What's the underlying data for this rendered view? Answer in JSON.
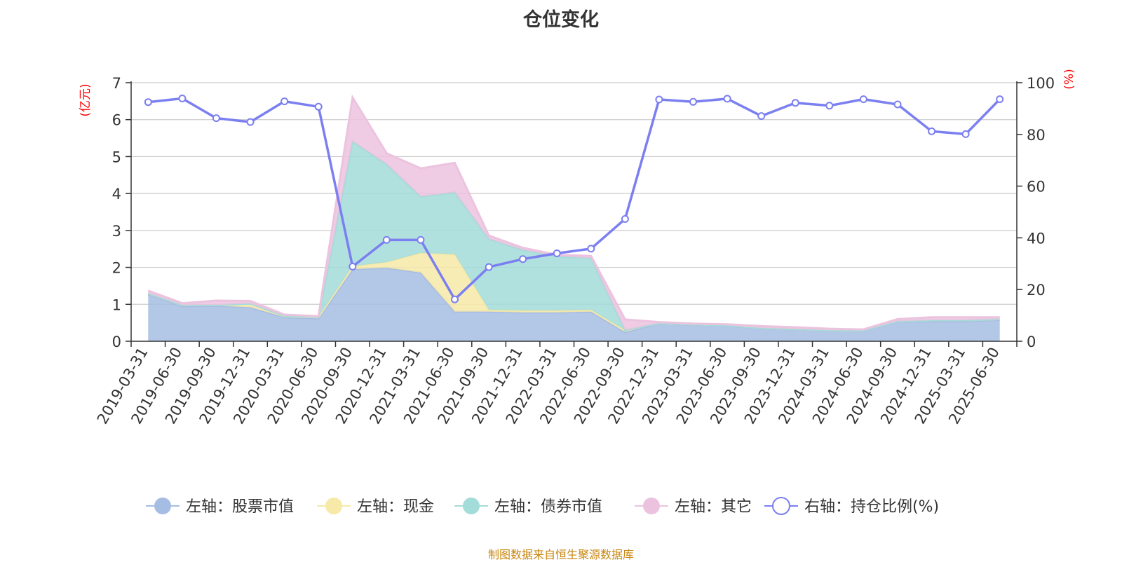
{
  "title": "仓位变化",
  "footer": "制图数据来自恒生聚源数据库",
  "colors": {
    "stock": "#a6bde3",
    "cash": "#f7e9a8",
    "bond": "#a3dcd9",
    "other": "#ecc3df",
    "ratio": "#7b7ff0",
    "axis_unit": "#ff0000",
    "footer": "#c8860f"
  },
  "chart_data": {
    "type": "area",
    "title": "仓位变化",
    "left_axis_unit": "(亿元)",
    "right_axis_unit": "(%)",
    "ylim_left": [
      0,
      7
    ],
    "ylim_right": [
      0,
      100
    ],
    "left_ticks": [
      "0",
      "1",
      "2",
      "3",
      "4",
      "5",
      "6",
      "7"
    ],
    "right_ticks": [
      "0",
      "20",
      "40",
      "60",
      "80",
      "100"
    ],
    "grid": true,
    "legend_position": "bottom",
    "x": [
      "2019-03-31",
      "2019-06-30",
      "2019-09-30",
      "2019-12-31",
      "2020-03-31",
      "2020-06-30",
      "2020-09-30",
      "2020-12-31",
      "2021-03-31",
      "2021-06-30",
      "2021-09-30",
      "2021-12-31",
      "2022-03-31",
      "2022-06-30",
      "2022-09-30",
      "2022-12-31",
      "2023-03-31",
      "2023-06-30",
      "2023-09-30",
      "2023-12-31",
      "2024-03-31",
      "2024-06-30",
      "2024-09-30",
      "2024-12-31",
      "2025-03-31",
      "2025-06-30"
    ],
    "series": [
      {
        "name": "左轴：股票市值",
        "axis": "left",
        "key": "stock",
        "values": [
          1.27,
          0.95,
          0.96,
          0.92,
          0.65,
          0.62,
          1.95,
          1.99,
          1.86,
          0.8,
          0.8,
          0.78,
          0.78,
          0.8,
          0.25,
          0.48,
          0.45,
          0.42,
          0.35,
          0.32,
          0.29,
          0.29,
          0.53,
          0.54,
          0.54,
          0.58
        ]
      },
      {
        "name": "左轴：现金",
        "axis": "left",
        "key": "cash",
        "values": [
          0.03,
          0.03,
          0.02,
          0.1,
          0.04,
          0.04,
          0.08,
          0.15,
          0.53,
          1.55,
          0.05,
          0.05,
          0.05,
          0.05,
          0.05,
          0.01,
          0.01,
          0.01,
          0.01,
          0.01,
          0.01,
          0.01,
          0.01,
          0.03,
          0.03,
          0.02
        ]
      },
      {
        "name": "左轴：债券市值",
        "axis": "left",
        "key": "bond",
        "values": [
          0,
          0,
          0,
          0,
          0,
          0,
          3.38,
          2.65,
          1.53,
          1.68,
          1.92,
          1.64,
          1.47,
          1.4,
          0,
          0,
          0,
          0,
          0,
          0,
          0,
          0,
          0,
          0,
          0,
          0
        ]
      },
      {
        "name": "左轴：其它",
        "axis": "left",
        "key": "other",
        "values": [
          0.07,
          0.05,
          0.12,
          0.07,
          0.03,
          0.02,
          1.19,
          0.3,
          0.76,
          0.8,
          0.09,
          0.06,
          0.04,
          0.06,
          0.29,
          0.03,
          0.02,
          0.03,
          0.05,
          0.05,
          0.04,
          0.02,
          0.06,
          0.08,
          0.08,
          0.05
        ]
      },
      {
        "name": "右轴：持仓比例(%)",
        "axis": "right",
        "key": "ratio",
        "values": [
          92.5,
          93.9,
          86.3,
          84.8,
          92.8,
          90.7,
          28.9,
          39.2,
          39.2,
          16.2,
          28.7,
          31.8,
          34.0,
          35.8,
          47.3,
          93.5,
          92.6,
          93.8,
          87.1,
          92.2,
          91.1,
          93.6,
          91.6,
          81.2,
          80.1,
          93.6
        ]
      }
    ]
  }
}
